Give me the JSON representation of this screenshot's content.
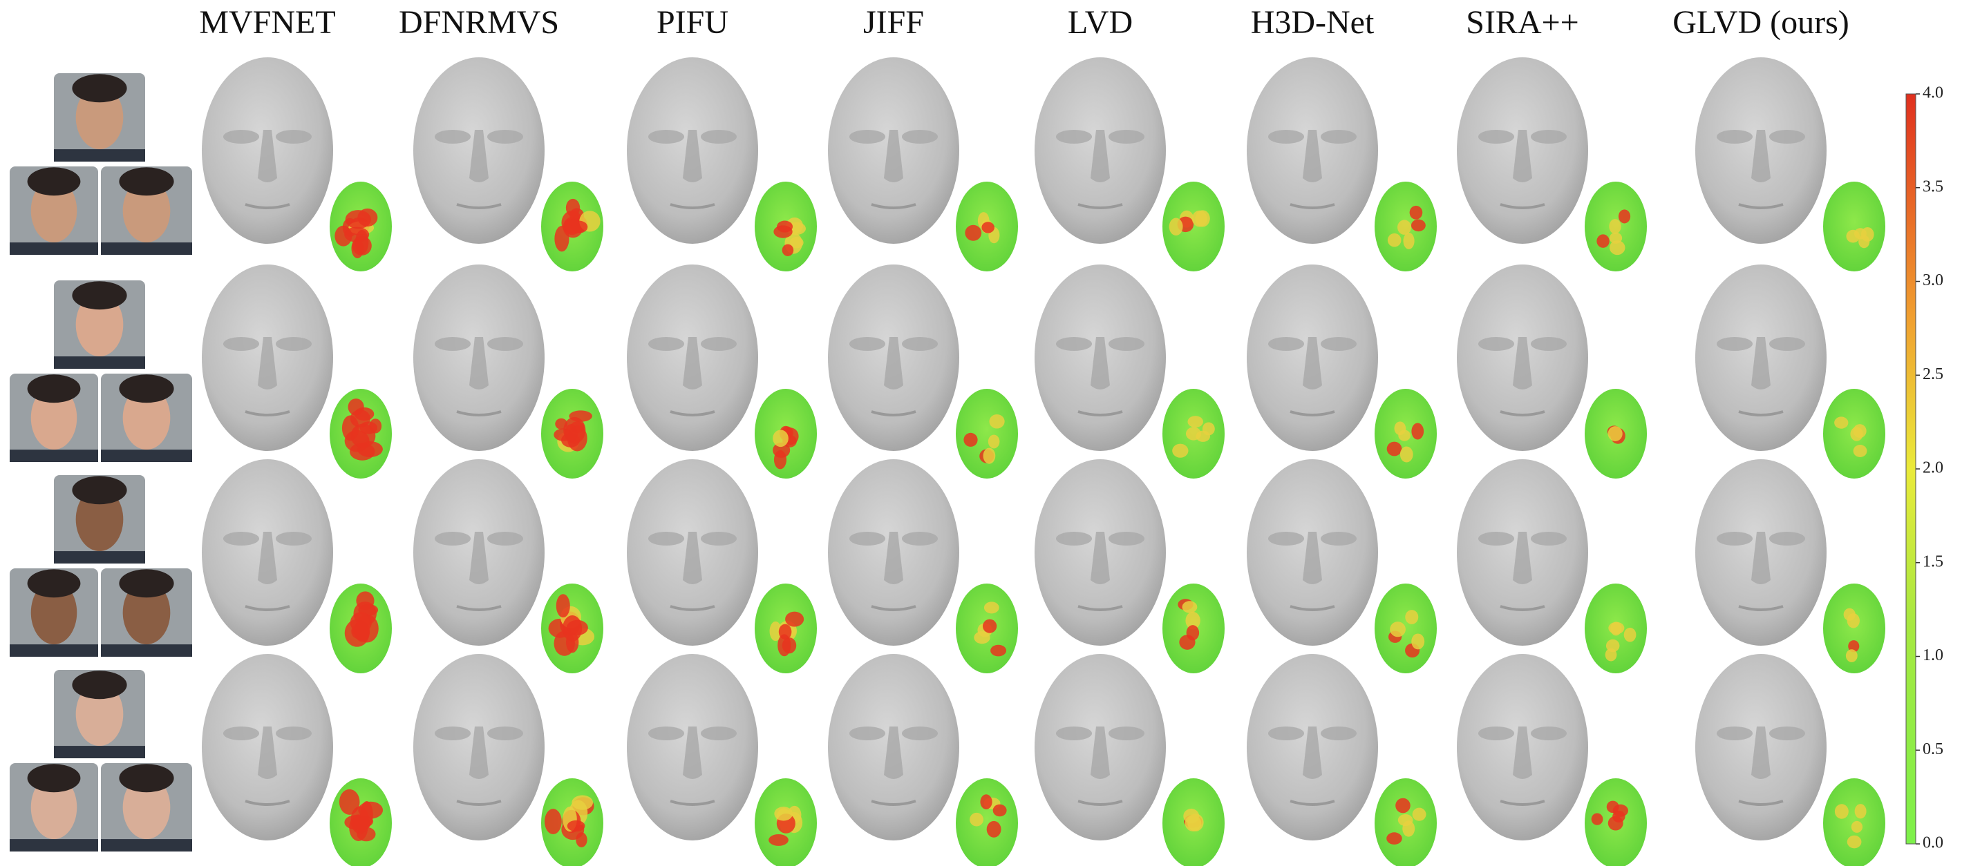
{
  "header": {
    "methods": [
      "MVFNET",
      "DFNRMVS",
      "PIFU",
      "JIFF",
      "LVD",
      "H3D-Net",
      "SIRA++",
      "GLVD (ours)"
    ]
  },
  "colorbar": {
    "lim": [
      0,
      4
    ],
    "ticks": [
      {
        "value": 0,
        "label": "0.0"
      },
      0.5,
      {
        "value": 1,
        "label": "1.0"
      },
      1.5,
      {
        "value": 2,
        "label": "2.0"
      },
      2.5,
      {
        "value": 3,
        "label": "3.0"
      },
      3.5,
      {
        "value": 4,
        "label": "4.0"
      }
    ]
  }
}
